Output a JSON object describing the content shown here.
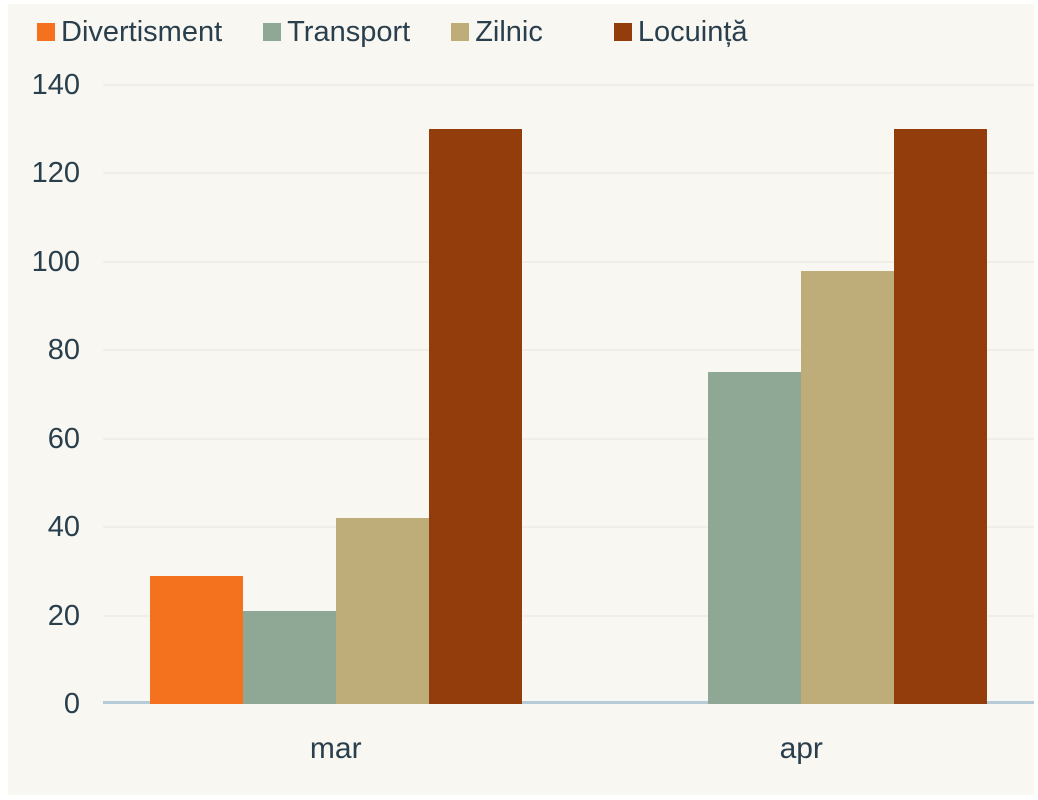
{
  "chart_data": {
    "type": "bar",
    "categories": [
      "mar",
      "apr"
    ],
    "series": [
      {
        "name": "Divertisment",
        "color": "#f4711e",
        "values": [
          29,
          0
        ]
      },
      {
        "name": "Transport",
        "color": "#8fa795",
        "values": [
          21,
          75
        ]
      },
      {
        "name": "Zilnic",
        "color": "#bfad79",
        "values": [
          42,
          98
        ]
      },
      {
        "name": "Locuință",
        "color": "#943d0c",
        "values": [
          130,
          130
        ]
      }
    ],
    "title": "",
    "xlabel": "",
    "ylabel": "",
    "ylim": [
      0,
      140
    ],
    "yticks": [
      0,
      20,
      40,
      60,
      80,
      100,
      120,
      140
    ],
    "grid": true,
    "legend_position": "top"
  },
  "colors": {
    "page_background": "#ffffff",
    "panel_background": "#f8f7f1",
    "text": "#2a3f4d",
    "axis_line": "#b7cbd7",
    "gridline": "#efefe7"
  }
}
